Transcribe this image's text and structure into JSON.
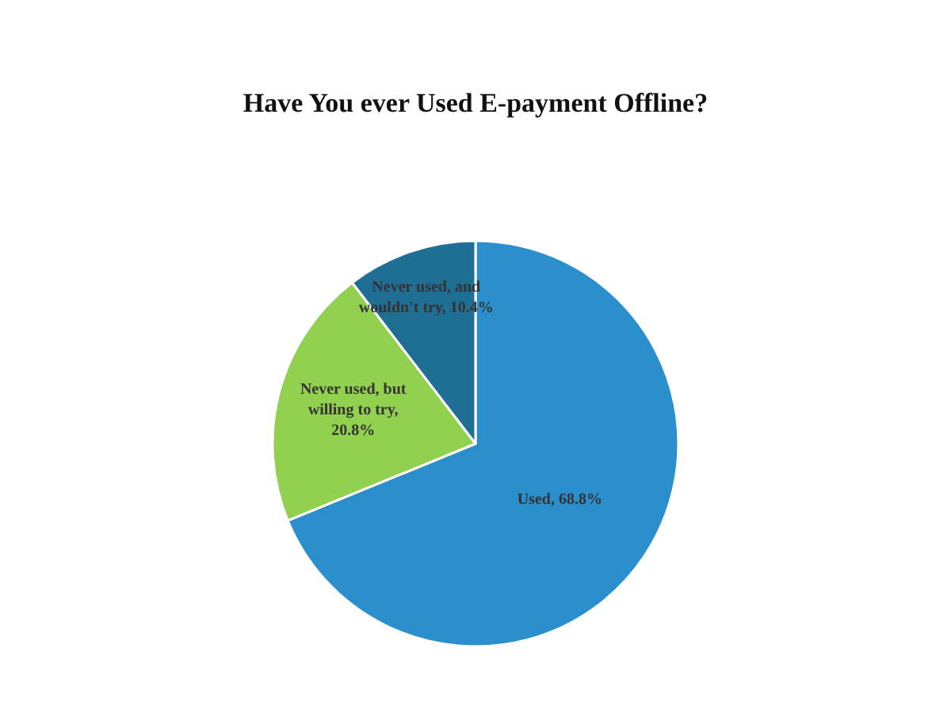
{
  "chart_data": {
    "type": "pie",
    "title": "Have You ever Used E-payment Offline?",
    "categories": [
      null,
      null,
      null
    ],
    "values": [
      68.8,
      20.8,
      10.4
    ],
    "value_labels": [
      "Used, 68.8%",
      "Never used, but willing to try, 20.8%",
      "Never used, and wouldn't try, 10.4%"
    ],
    "colors": [
      "#2b8fcd",
      "#92d050",
      "#1f6e94"
    ],
    "legend": false
  }
}
